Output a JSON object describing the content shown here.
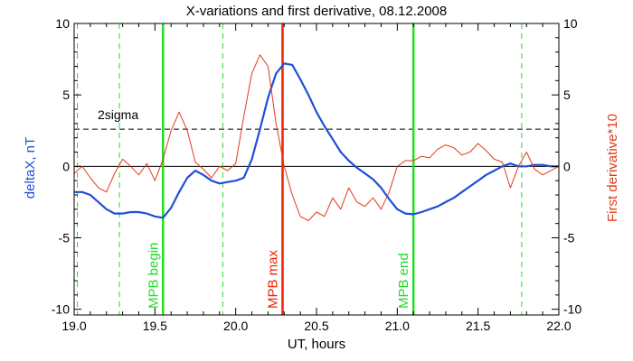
{
  "chart_data": {
    "type": "line",
    "title": "X-variations and first derivative, 08.12.2008",
    "xlabel": "UT, hours",
    "ylabel_left": "deltaX, nT",
    "ylabel_right": "First derivative*10",
    "xlim": [
      19.0,
      22.0
    ],
    "ylim": [
      -10.4,
      10.0
    ],
    "x_ticks": [
      "19.0",
      "19.5",
      "20.0",
      "20.5",
      "21.0",
      "21.5",
      "22.0"
    ],
    "y_ticks": [
      "10",
      "5",
      "0",
      "-5",
      "-10"
    ],
    "y_tick_values": [
      10,
      5,
      0,
      -5,
      -10
    ],
    "sigma_label": "2sigma",
    "sigma_value": 2.6,
    "zero_line": 0,
    "colors": {
      "deltaX": "#1f4fd6",
      "derivative": "#e03a1a",
      "mpb": "#22dd22",
      "mpb_max": "#ee2200",
      "axis": "#000000"
    },
    "markers": [
      {
        "x": 19.55,
        "label": "MPB begin",
        "kind": "solid"
      },
      {
        "x": 20.29,
        "label": "MPB max",
        "kind": "max"
      },
      {
        "x": 21.1,
        "label": "MPB end",
        "kind": "solid"
      }
    ],
    "dashed_markers": [
      19.02,
      19.28,
      19.92,
      21.77
    ],
    "series": [
      {
        "name": "deltaX, nT",
        "axis": "left",
        "x": [
          19.0,
          19.05,
          19.1,
          19.15,
          19.2,
          19.25,
          19.3,
          19.35,
          19.4,
          19.45,
          19.5,
          19.55,
          19.6,
          19.65,
          19.7,
          19.75,
          19.8,
          19.85,
          19.9,
          19.95,
          20.0,
          20.05,
          20.1,
          20.15,
          20.2,
          20.25,
          20.3,
          20.35,
          20.4,
          20.45,
          20.5,
          20.55,
          20.6,
          20.65,
          20.7,
          20.75,
          20.8,
          20.85,
          20.9,
          20.95,
          21.0,
          21.05,
          21.1,
          21.15,
          21.2,
          21.25,
          21.3,
          21.35,
          21.4,
          21.45,
          21.5,
          21.55,
          21.6,
          21.65,
          21.7,
          21.75,
          21.8,
          21.85,
          21.9,
          21.95,
          22.0
        ],
        "y": [
          -1.8,
          -1.8,
          -2.0,
          -2.5,
          -3.0,
          -3.3,
          -3.3,
          -3.2,
          -3.2,
          -3.3,
          -3.5,
          -3.6,
          -2.9,
          -1.8,
          -0.8,
          -0.3,
          -0.6,
          -1.0,
          -1.2,
          -1.1,
          -1.0,
          -0.8,
          0.5,
          2.6,
          4.8,
          6.5,
          7.2,
          7.1,
          6.1,
          5.0,
          3.8,
          2.8,
          1.9,
          1.0,
          0.4,
          -0.1,
          -0.5,
          -0.9,
          -1.5,
          -2.3,
          -3.0,
          -3.3,
          -3.35,
          -3.2,
          -3.0,
          -2.8,
          -2.5,
          -2.2,
          -1.8,
          -1.4,
          -1.0,
          -0.6,
          -0.3,
          0.0,
          0.2,
          0.0,
          0.0,
          0.1,
          0.1,
          0.0,
          0.0
        ]
      },
      {
        "name": "First derivative*10",
        "axis": "right",
        "x": [
          19.0,
          19.05,
          19.1,
          19.15,
          19.2,
          19.25,
          19.3,
          19.35,
          19.4,
          19.45,
          19.5,
          19.55,
          19.6,
          19.65,
          19.7,
          19.75,
          19.8,
          19.85,
          19.9,
          19.95,
          20.0,
          20.05,
          20.1,
          20.15,
          20.2,
          20.25,
          20.3,
          20.35,
          20.4,
          20.45,
          20.5,
          20.55,
          20.6,
          20.65,
          20.7,
          20.75,
          20.8,
          20.85,
          20.9,
          20.95,
          21.0,
          21.05,
          21.1,
          21.15,
          21.2,
          21.25,
          21.3,
          21.35,
          21.4,
          21.45,
          21.5,
          21.55,
          21.6,
          21.65,
          21.7,
          21.75,
          21.8,
          21.85,
          21.9,
          21.95,
          22.0
        ],
        "y": [
          -0.5,
          0.0,
          -0.8,
          -1.5,
          -1.8,
          -0.5,
          0.5,
          0.0,
          -0.6,
          0.2,
          -1.0,
          0.5,
          2.5,
          3.8,
          2.5,
          0.3,
          -0.2,
          -0.8,
          0.0,
          -0.3,
          0.2,
          3.5,
          6.5,
          7.8,
          7.0,
          3.0,
          0.0,
          -2.0,
          -3.5,
          -3.8,
          -3.2,
          -3.5,
          -2.2,
          -3.0,
          -1.5,
          -2.5,
          -2.8,
          -2.2,
          -3.0,
          -1.8,
          0.0,
          0.4,
          0.4,
          0.7,
          0.6,
          1.2,
          1.5,
          1.3,
          0.8,
          1.0,
          1.6,
          1.1,
          0.5,
          0.3,
          -1.5,
          0.0,
          1.0,
          -0.2,
          -0.6,
          -0.3,
          0.0
        ]
      }
    ]
  }
}
